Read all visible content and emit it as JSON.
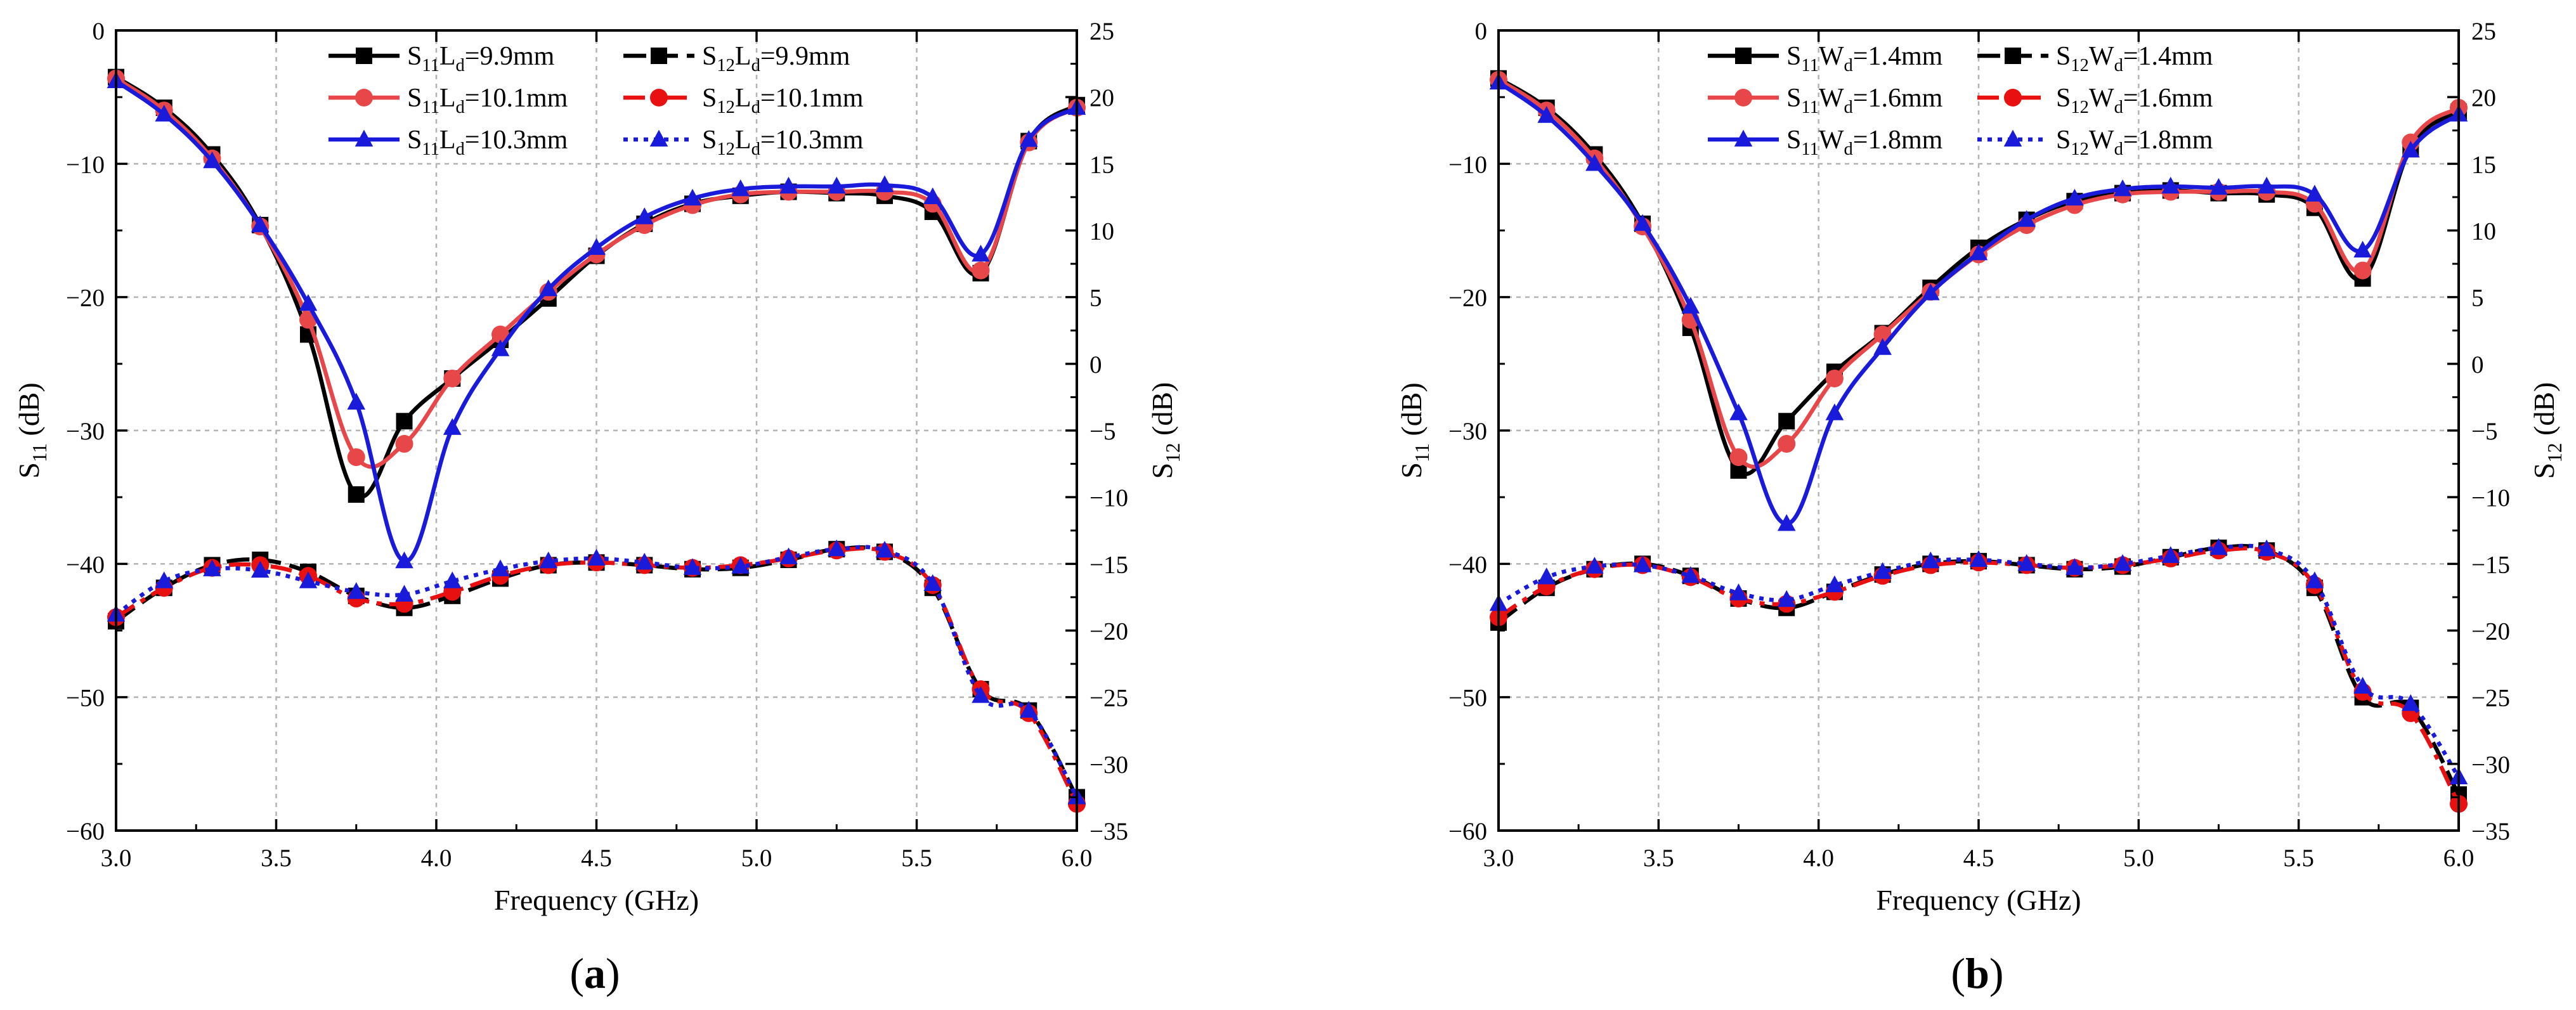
{
  "chart_data": [
    {
      "type": "line",
      "panel_label": "(a)",
      "xlabel": "Frequency (GHz)",
      "ylabel_left": {
        "base": "S",
        "sub": "11",
        "unit": " (dB)"
      },
      "ylabel_right": {
        "base": "S",
        "sub": "12",
        "unit": " (dB)"
      },
      "xlim": [
        3.0,
        6.0
      ],
      "ylim_left": [
        -60,
        0
      ],
      "ylim_right": [
        -35,
        25
      ],
      "x_ticks": [
        3.0,
        3.5,
        4.0,
        4.5,
        5.0,
        5.5,
        6.0
      ],
      "x_tick_labels": [
        "3.0",
        "3.5",
        "4.0",
        "4.5",
        "5.0",
        "5.5",
        "6.0"
      ],
      "y_left_ticks": [
        0,
        -10,
        -20,
        -30,
        -40,
        -50,
        -60
      ],
      "y_left_tick_labels": [
        "0",
        "−10",
        "−20",
        "−30",
        "−40",
        "−50",
        "−60"
      ],
      "y_right_ticks": [
        25,
        20,
        15,
        10,
        5,
        0,
        -5,
        -10,
        -15,
        -20,
        -25,
        -30,
        -35
      ],
      "y_right_tick_labels": [
        "25",
        "20",
        "15",
        "10",
        "5",
        "0",
        "−5",
        "−10",
        "−15",
        "−20",
        "−25",
        "−30",
        "−35"
      ],
      "grid": true,
      "legend_position": "top-center",
      "series": [
        {
          "name": "S11 Ld=9.9mm",
          "legend": {
            "base": "S",
            "sub": "11",
            "mid": "L",
            "sub2": "d",
            "tail": "=9.9mm"
          },
          "axis": "left",
          "color": "#000000",
          "dash": "solid",
          "marker": "square",
          "x": [
            3.0,
            3.15,
            3.3,
            3.45,
            3.6,
            3.75,
            3.9,
            4.05,
            4.2,
            4.35,
            4.5,
            4.65,
            4.8,
            4.95,
            5.1,
            5.25,
            5.4,
            5.55,
            5.7,
            5.85,
            6.0
          ],
          "values": [
            -3.5,
            -5.8,
            -9.3,
            -14.6,
            -22.8,
            -34.8,
            -29.3,
            -26.1,
            -23.2,
            -20.1,
            -16.9,
            -14.5,
            -13.0,
            -12.4,
            -12.1,
            -12.2,
            -12.4,
            -13.6,
            -18.2,
            -8.3,
            -5.6
          ]
        },
        {
          "name": "S11 Ld=10.1mm",
          "legend": {
            "base": "S",
            "sub": "11",
            "mid": "L",
            "sub2": "d",
            "tail": "=10.1mm"
          },
          "axis": "left",
          "color": "#e8474a",
          "dash": "solid",
          "marker": "circle",
          "x": [
            3.0,
            3.15,
            3.3,
            3.45,
            3.6,
            3.75,
            3.9,
            4.05,
            4.2,
            4.35,
            4.5,
            4.65,
            4.8,
            4.95,
            5.1,
            5.25,
            5.4,
            5.55,
            5.7,
            5.85,
            6.0
          ],
          "values": [
            -3.6,
            -6.0,
            -9.6,
            -14.7,
            -21.7,
            -32.0,
            -31.0,
            -26.1,
            -22.8,
            -19.6,
            -16.8,
            -14.6,
            -13.1,
            -12.3,
            -12.1,
            -12.1,
            -12.1,
            -13.0,
            -18.0,
            -8.4,
            -5.8
          ]
        },
        {
          "name": "S11 Ld=10.3mm",
          "legend": {
            "base": "S",
            "sub": "11",
            "mid": "L",
            "sub2": "d",
            "tail": "=10.3mm"
          },
          "axis": "left",
          "color": "#1a1adb",
          "dash": "solid",
          "marker": "triangle",
          "x": [
            3.0,
            3.15,
            3.3,
            3.45,
            3.6,
            3.75,
            3.9,
            4.05,
            4.2,
            4.35,
            4.5,
            4.65,
            4.8,
            4.95,
            5.1,
            5.25,
            5.4,
            5.55,
            5.7,
            5.85,
            6.0
          ],
          "values": [
            -3.8,
            -6.3,
            -9.8,
            -14.6,
            -20.5,
            -27.9,
            -39.8,
            -29.8,
            -23.9,
            -19.4,
            -16.3,
            -14.0,
            -12.6,
            -11.9,
            -11.7,
            -11.7,
            -11.6,
            -12.5,
            -16.8,
            -8.2,
            -5.8
          ]
        },
        {
          "name": "S12 Ld=9.9mm",
          "legend": {
            "base": "S",
            "sub": "12",
            "mid": "L",
            "sub2": "d",
            "tail": "=9.9mm"
          },
          "axis": "right",
          "color": "#000000",
          "dash": "dash",
          "marker": "square",
          "x": [
            3.0,
            3.15,
            3.3,
            3.45,
            3.6,
            3.75,
            3.9,
            4.05,
            4.2,
            4.35,
            4.5,
            4.65,
            4.8,
            4.95,
            5.1,
            5.25,
            5.4,
            5.55,
            5.7,
            5.85,
            6.0
          ],
          "values": [
            -19.3,
            -16.8,
            -15.1,
            -14.7,
            -15.6,
            -17.4,
            -18.3,
            -17.4,
            -16.1,
            -15.1,
            -14.9,
            -15.1,
            -15.4,
            -15.3,
            -14.7,
            -13.9,
            -14.1,
            -16.8,
            -24.4,
            -26.0,
            -32.5
          ]
        },
        {
          "name": "S12 Ld=10.1mm",
          "legend": {
            "base": "S",
            "sub": "12",
            "mid": "L",
            "sub2": "d",
            "tail": "=10.1mm"
          },
          "axis": "right",
          "color": "#e81010",
          "dash": "dashdot",
          "marker": "circle",
          "x": [
            3.0,
            3.15,
            3.3,
            3.45,
            3.6,
            3.75,
            3.9,
            4.05,
            4.2,
            4.35,
            4.5,
            4.65,
            4.8,
            4.95,
            5.1,
            5.25,
            5.4,
            5.55,
            5.7,
            5.85,
            6.0
          ],
          "values": [
            -19.0,
            -16.8,
            -15.3,
            -15.1,
            -15.9,
            -17.6,
            -18.0,
            -17.1,
            -15.9,
            -15.1,
            -14.9,
            -15.1,
            -15.3,
            -15.1,
            -14.6,
            -14.0,
            -14.1,
            -16.6,
            -24.4,
            -26.2,
            -33.0
          ]
        },
        {
          "name": "S12 Ld=10.3mm",
          "legend": {
            "base": "S",
            "sub": "12",
            "mid": "L",
            "sub2": "d",
            "tail": "=10.3mm"
          },
          "axis": "right",
          "color": "#1a1adb",
          "dash": "dot",
          "marker": "triangle",
          "x": [
            3.0,
            3.15,
            3.3,
            3.45,
            3.6,
            3.75,
            3.9,
            4.05,
            4.2,
            4.35,
            4.5,
            4.65,
            4.8,
            4.95,
            5.1,
            5.25,
            5.4,
            5.55,
            5.7,
            5.85,
            6.0
          ],
          "values": [
            -18.8,
            -16.3,
            -15.4,
            -15.5,
            -16.3,
            -17.1,
            -17.3,
            -16.3,
            -15.4,
            -14.8,
            -14.6,
            -14.9,
            -15.3,
            -15.2,
            -14.5,
            -13.9,
            -14.0,
            -16.5,
            -24.9,
            -26.0,
            -32.5
          ]
        }
      ]
    },
    {
      "type": "line",
      "panel_label": "(b)",
      "xlabel": "Frequency (GHz)",
      "ylabel_left": {
        "base": "S",
        "sub": "11",
        "unit": " (dB)"
      },
      "ylabel_right": {
        "base": "S",
        "sub": "12",
        "unit": " (dB)"
      },
      "xlim": [
        3.0,
        6.0
      ],
      "ylim_left": [
        -60,
        0
      ],
      "ylim_right": [
        -35,
        25
      ],
      "x_ticks": [
        3.0,
        3.5,
        4.0,
        4.5,
        5.0,
        5.5,
        6.0
      ],
      "x_tick_labels": [
        "3.0",
        "3.5",
        "4.0",
        "4.5",
        "5.0",
        "5.5",
        "6.0"
      ],
      "y_left_ticks": [
        0,
        -10,
        -20,
        -30,
        -40,
        -50,
        -60
      ],
      "y_left_tick_labels": [
        "0",
        "−10",
        "−20",
        "−30",
        "−40",
        "−50",
        "−60"
      ],
      "y_right_ticks": [
        25,
        20,
        15,
        10,
        5,
        0,
        -5,
        -10,
        -15,
        -20,
        -25,
        -30,
        -35
      ],
      "y_right_tick_labels": [
        "25",
        "20",
        "15",
        "10",
        "5",
        "0",
        "−5",
        "−10",
        "−15",
        "−20",
        "−25",
        "−30",
        "−35"
      ],
      "grid": true,
      "legend_position": "top-center",
      "series": [
        {
          "name": "S11 Wd=1.4mm",
          "legend": {
            "base": "S",
            "sub": "11",
            "mid": "W",
            "sub2": "d",
            "tail": "=1.4mm"
          },
          "axis": "left",
          "color": "#000000",
          "dash": "solid",
          "marker": "square",
          "x": [
            3.0,
            3.15,
            3.3,
            3.45,
            3.6,
            3.75,
            3.9,
            4.05,
            4.2,
            4.35,
            4.5,
            4.65,
            4.8,
            4.95,
            5.1,
            5.25,
            5.4,
            5.55,
            5.7,
            5.85,
            6.0
          ],
          "values": [
            -3.6,
            -5.8,
            -9.3,
            -14.5,
            -22.3,
            -33.0,
            -29.3,
            -25.6,
            -22.7,
            -19.3,
            -16.3,
            -14.2,
            -12.8,
            -12.2,
            -12.0,
            -12.2,
            -12.3,
            -13.3,
            -18.6,
            -8.8,
            -6.1
          ]
        },
        {
          "name": "S11 Wd=1.6mm",
          "legend": {
            "base": "S",
            "sub": "11",
            "mid": "W",
            "sub2": "d",
            "tail": "=1.6mm"
          },
          "axis": "left",
          "color": "#e8474a",
          "dash": "solid",
          "marker": "circle",
          "x": [
            3.0,
            3.15,
            3.3,
            3.45,
            3.6,
            3.75,
            3.9,
            4.05,
            4.2,
            4.35,
            4.5,
            4.65,
            4.8,
            4.95,
            5.1,
            5.25,
            5.4,
            5.55,
            5.7,
            5.85,
            6.0
          ],
          "values": [
            -3.7,
            -6.0,
            -9.6,
            -14.7,
            -21.7,
            -32.0,
            -31.0,
            -26.1,
            -22.8,
            -19.6,
            -16.8,
            -14.6,
            -13.1,
            -12.3,
            -12.1,
            -12.1,
            -12.1,
            -13.0,
            -18.0,
            -8.4,
            -5.8
          ]
        },
        {
          "name": "S11 Wd=1.8mm",
          "legend": {
            "base": "S",
            "sub": "11",
            "mid": "W",
            "sub2": "d",
            "tail": "=1.8mm"
          },
          "axis": "left",
          "color": "#1a1adb",
          "dash": "solid",
          "marker": "triangle",
          "x": [
            3.0,
            3.15,
            3.3,
            3.45,
            3.6,
            3.75,
            3.9,
            4.05,
            4.2,
            4.35,
            4.5,
            4.65,
            4.8,
            4.95,
            5.1,
            5.25,
            5.4,
            5.55,
            5.7,
            5.85,
            6.0
          ],
          "values": [
            -3.9,
            -6.4,
            -10.0,
            -14.5,
            -20.7,
            -28.7,
            -37.0,
            -28.7,
            -23.8,
            -19.7,
            -16.7,
            -14.2,
            -12.6,
            -11.9,
            -11.7,
            -11.8,
            -11.7,
            -12.3,
            -16.5,
            -9.0,
            -6.3
          ]
        },
        {
          "name": "S12 Wd=1.4mm",
          "legend": {
            "base": "S",
            "sub": "12",
            "mid": "W",
            "sub2": "d",
            "tail": "=1.4mm"
          },
          "axis": "right",
          "color": "#000000",
          "dash": "dash",
          "marker": "square",
          "x": [
            3.0,
            3.15,
            3.3,
            3.45,
            3.6,
            3.75,
            3.9,
            4.05,
            4.2,
            4.35,
            4.5,
            4.65,
            4.8,
            4.95,
            5.1,
            5.25,
            5.4,
            5.55,
            5.7,
            5.85,
            6.0
          ],
          "values": [
            -19.4,
            -16.8,
            -15.4,
            -15.0,
            -15.9,
            -17.6,
            -18.3,
            -17.1,
            -15.8,
            -15.0,
            -14.8,
            -15.1,
            -15.4,
            -15.2,
            -14.5,
            -13.8,
            -14.0,
            -16.8,
            -25.0,
            -25.8,
            -32.3
          ]
        },
        {
          "name": "S12 Wd=1.6mm",
          "legend": {
            "base": "S",
            "sub": "12",
            "mid": "W",
            "sub2": "d",
            "tail": "=1.6mm"
          },
          "axis": "right",
          "color": "#e81010",
          "dash": "dashdot",
          "marker": "circle",
          "x": [
            3.0,
            3.15,
            3.3,
            3.45,
            3.6,
            3.75,
            3.9,
            4.05,
            4.2,
            4.35,
            4.5,
            4.65,
            4.8,
            4.95,
            5.1,
            5.25,
            5.4,
            5.55,
            5.7,
            5.85,
            6.0
          ],
          "values": [
            -19.0,
            -16.7,
            -15.4,
            -15.1,
            -16.0,
            -17.6,
            -18.0,
            -17.1,
            -15.9,
            -15.1,
            -14.9,
            -15.1,
            -15.3,
            -15.1,
            -14.6,
            -14.0,
            -14.1,
            -16.6,
            -24.6,
            -26.2,
            -33.0
          ]
        },
        {
          "name": "S12 Wd=1.8mm",
          "legend": {
            "base": "S",
            "sub": "12",
            "mid": "W",
            "sub2": "d",
            "tail": "=1.8mm"
          },
          "axis": "right",
          "color": "#1a1adb",
          "dash": "dot",
          "marker": "triangle",
          "x": [
            3.0,
            3.15,
            3.3,
            3.45,
            3.6,
            3.75,
            3.9,
            4.05,
            4.2,
            4.35,
            4.5,
            4.65,
            4.8,
            4.95,
            5.1,
            5.25,
            5.4,
            5.55,
            5.7,
            5.85,
            6.0
          ],
          "values": [
            -18.0,
            -16.0,
            -15.2,
            -15.1,
            -15.9,
            -17.2,
            -17.7,
            -16.6,
            -15.6,
            -14.8,
            -14.7,
            -15.0,
            -15.3,
            -15.0,
            -14.4,
            -13.8,
            -13.9,
            -16.3,
            -24.2,
            -25.5,
            -31.0
          ]
        }
      ]
    }
  ]
}
